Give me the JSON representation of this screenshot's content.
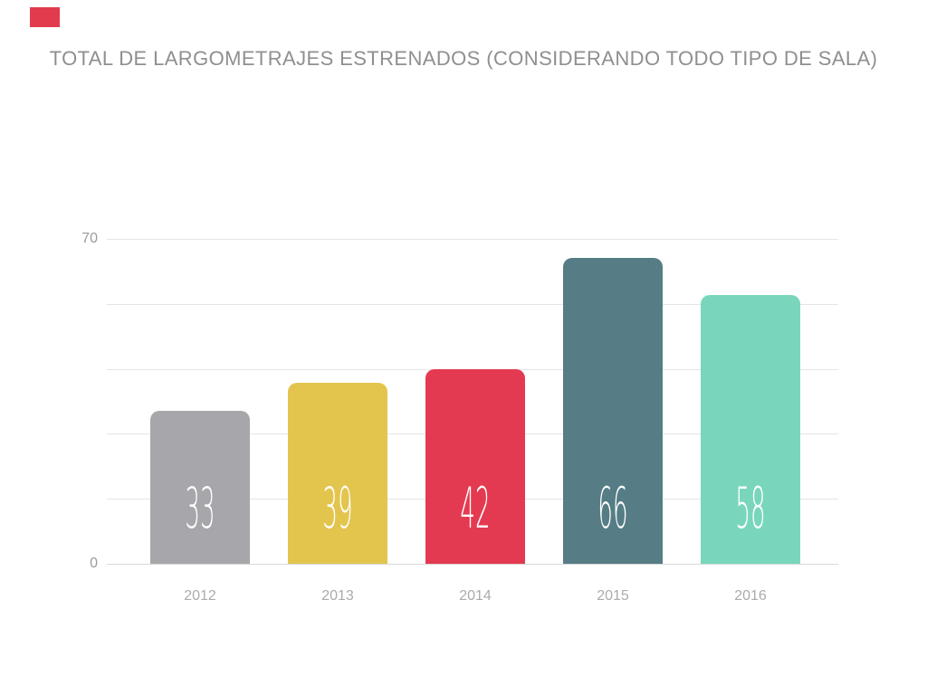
{
  "title": "TOTAL DE LARGOMETRAJES ESTRENADOS (CONSIDERANDO TODO TIPO DE SALA)",
  "corner_marker": {
    "color": "#e23b4e"
  },
  "colors": {
    "title_text": "#8f8f8f",
    "tick_text": "#9b9b9b",
    "category_text": "#ababab",
    "gridline": "#e5e5e5",
    "baseline": "#d9d9d9",
    "value_text": "#ffffff"
  },
  "chart_data": {
    "type": "bar",
    "title": "TOTAL DE LARGOMETRAJES ESTRENADOS (CONSIDERANDO TODO TIPO DE SALA)",
    "categories": [
      "2012",
      "2013",
      "2014",
      "2015",
      "2016"
    ],
    "values": [
      33,
      39,
      42,
      66,
      58
    ],
    "bar_colors": [
      "#a7a6aa",
      "#e3c54e",
      "#e43a51",
      "#567d85",
      "#79d6bd"
    ],
    "value_labels": [
      "33",
      "39",
      "42",
      "66",
      "58"
    ],
    "xlabel": "",
    "ylabel": "",
    "ylim": [
      0,
      70
    ],
    "gridline_step": 14,
    "grid": true,
    "legend": false,
    "ytick_labels_shown": [
      "70",
      "0"
    ],
    "value_label_position": "inside-bottom"
  }
}
